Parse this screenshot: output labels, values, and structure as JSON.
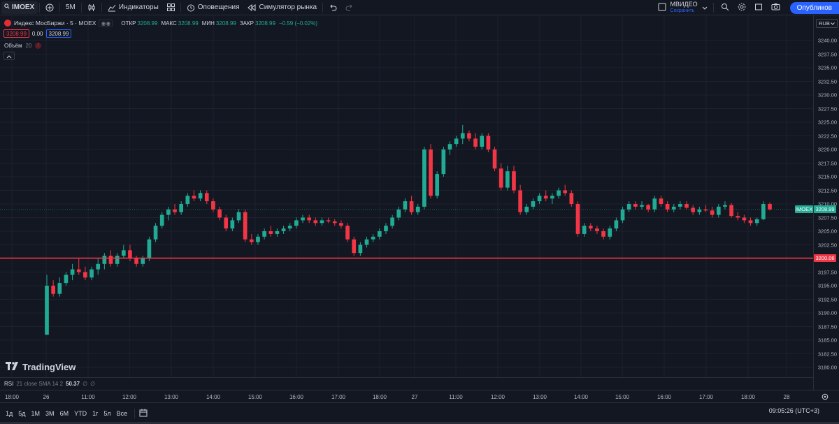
{
  "toolbar": {
    "symbol": "IMOEX",
    "interval": "5M",
    "indicators": "Индикаторы",
    "alerts": "Оповещения",
    "replay": "Симулятор рынка",
    "layout_name": "МВИДЕО",
    "layout_status": "Сохранить",
    "publish": "Опубликов"
  },
  "legend": {
    "title": "Индекс МосБиржи · 5 · MOEX",
    "open_label": "ОТКР",
    "open": "3208.99",
    "high_label": "МАКС",
    "high": "3208.99",
    "low_label": "МИН",
    "low": "3208.99",
    "close_label": "ЗАКР",
    "close": "3208.99",
    "change": "−0.59 (−0.02%)",
    "sell": "3208.99",
    "spread": "0.00",
    "buy": "3208.99",
    "volume_label": "Объём",
    "volume_param": "20"
  },
  "price_axis": {
    "currency": "RUB",
    "ticks": [
      "3240.00",
      "3237.50",
      "3235.00",
      "3232.50",
      "3230.00",
      "3227.50",
      "3225.00",
      "3222.50",
      "3220.00",
      "3217.50",
      "3215.00",
      "3212.50",
      "3210.00",
      "3207.50",
      "3205.00",
      "3202.50",
      "3197.50",
      "3195.00",
      "3192.50",
      "3190.00",
      "3187.50",
      "3185.00",
      "3182.50",
      "3180.00"
    ],
    "last_label": "IMOEX",
    "last_price": "3208.99",
    "line_price": "3200.06"
  },
  "colors": {
    "up": "#22ab94",
    "down": "#f23645",
    "line": "#f23645",
    "bg": "#131722",
    "grid": "#1e222d"
  },
  "rsi": {
    "label": "RSI",
    "params": "21 close SMA 14 2",
    "value": "50.37",
    "n1": "∅",
    "n2": "∅"
  },
  "time_axis": {
    "ticks": [
      "18:00",
      "26",
      "11:00",
      "12:00",
      "13:00",
      "14:00",
      "15:00",
      "16:00",
      "17:00",
      "18:00",
      "27",
      "11:00",
      "12:00",
      "13:00",
      "14:00",
      "15:00",
      "16:00",
      "17:00",
      "18:00",
      "28"
    ]
  },
  "bottom": {
    "ranges": [
      "1д",
      "5д",
      "1М",
      "3М",
      "6М",
      "YTD",
      "1г",
      "5л",
      "Все"
    ],
    "clock": "09:05:26 (UTC+3)"
  },
  "brand": "TradingView",
  "chart_data": {
    "type": "candlestick",
    "ylim": [
      3178.5,
      3242.5
    ],
    "hline": 3200.06,
    "candles": [
      [
        3186,
        3197,
        3186,
        3195
      ],
      [
        3195,
        3196,
        3193,
        3193.5
      ],
      [
        3193.5,
        3196.5,
        3193,
        3195.5
      ],
      [
        3195.5,
        3197.5,
        3195,
        3197
      ],
      [
        3197,
        3199,
        3196,
        3198
      ],
      [
        3198,
        3200,
        3197,
        3197.5
      ],
      [
        3197.5,
        3198.5,
        3196,
        3196.5
      ],
      [
        3196.5,
        3198.5,
        3196,
        3198
      ],
      [
        3198,
        3200,
        3197,
        3199
      ],
      [
        3199,
        3201,
        3198,
        3200.5
      ],
      [
        3200.5,
        3201.5,
        3198.5,
        3199
      ],
      [
        3199,
        3201,
        3198.5,
        3200.5
      ],
      [
        3200.5,
        3202.5,
        3200,
        3201.5
      ],
      [
        3201.5,
        3202.5,
        3199.5,
        3200
      ],
      [
        3200,
        3200.5,
        3198.5,
        3199
      ],
      [
        3199,
        3200.5,
        3198.5,
        3200
      ],
      [
        3200,
        3204,
        3199.5,
        3203.5
      ],
      [
        3203.5,
        3206.5,
        3203,
        3206
      ],
      [
        3206,
        3208.5,
        3205.5,
        3208
      ],
      [
        3208,
        3209.5,
        3207,
        3209
      ],
      [
        3209,
        3210,
        3208,
        3208.5
      ],
      [
        3208.5,
        3210.5,
        3208,
        3210
      ],
      [
        3210,
        3212,
        3209.5,
        3211.5
      ],
      [
        3211.5,
        3212.5,
        3210.5,
        3211
      ],
      [
        3211,
        3212.5,
        3210.5,
        3212
      ],
      [
        3212,
        3212.5,
        3210,
        3210.5
      ],
      [
        3210.5,
        3211,
        3208.5,
        3209
      ],
      [
        3209,
        3209.5,
        3207,
        3207.5
      ],
      [
        3207.5,
        3208,
        3205,
        3205.5
      ],
      [
        3205.5,
        3207.5,
        3205,
        3207
      ],
      [
        3207,
        3209,
        3206.5,
        3208.5
      ],
      [
        3208.5,
        3209,
        3203,
        3203.5
      ],
      [
        3203.5,
        3204.5,
        3202.5,
        3203
      ],
      [
        3203,
        3204.5,
        3202.5,
        3204
      ],
      [
        3204,
        3205.5,
        3203.5,
        3205
      ],
      [
        3205,
        3206,
        3204,
        3204.5
      ],
      [
        3204.5,
        3205.5,
        3204,
        3205
      ],
      [
        3205,
        3206,
        3204.5,
        3205.5
      ],
      [
        3205.5,
        3206.5,
        3205,
        3206
      ],
      [
        3206,
        3207.5,
        3205.5,
        3207
      ],
      [
        3207,
        3208,
        3206.5,
        3207.5
      ],
      [
        3207.5,
        3208,
        3206.5,
        3207
      ],
      [
        3207,
        3207.5,
        3206,
        3206.5
      ],
      [
        3206.5,
        3207.5,
        3206,
        3207
      ],
      [
        3207,
        3207.5,
        3206.5,
        3206.8
      ],
      [
        3206.8,
        3207.2,
        3206,
        3206.5
      ],
      [
        3206.5,
        3207,
        3205.5,
        3206
      ],
      [
        3206,
        3206.5,
        3203,
        3203.5
      ],
      [
        3203.5,
        3204,
        3200.5,
        3201
      ],
      [
        3201,
        3203,
        3200.5,
        3202.5
      ],
      [
        3202.5,
        3204,
        3202,
        3203.5
      ],
      [
        3203.5,
        3204.5,
        3203,
        3204
      ],
      [
        3204,
        3205.5,
        3203.5,
        3205
      ],
      [
        3205,
        3206.5,
        3204.5,
        3206
      ],
      [
        3206,
        3208,
        3205.5,
        3207.5
      ],
      [
        3207.5,
        3209.5,
        3207,
        3209
      ],
      [
        3209,
        3211,
        3208.5,
        3210.5
      ],
      [
        3210.5,
        3211.5,
        3208,
        3208.5
      ],
      [
        3208.5,
        3210,
        3208,
        3209.5
      ],
      [
        3209.5,
        3220.5,
        3209,
        3220
      ],
      [
        3220,
        3221,
        3211,
        3211.5
      ],
      [
        3211.5,
        3216,
        3211,
        3215.5
      ],
      [
        3215.5,
        3220.5,
        3215,
        3220
      ],
      [
        3220,
        3221.5,
        3219,
        3221
      ],
      [
        3221,
        3222.5,
        3220.5,
        3222
      ],
      [
        3222,
        3224.5,
        3221,
        3223
      ],
      [
        3223,
        3223.5,
        3221.5,
        3222
      ],
      [
        3222,
        3223,
        3220,
        3220.5
      ],
      [
        3220.5,
        3223,
        3220,
        3222.5
      ],
      [
        3222.5,
        3223,
        3219.5,
        3220
      ],
      [
        3220,
        3220.5,
        3216,
        3216.5
      ],
      [
        3216.5,
        3217.5,
        3212.5,
        3213
      ],
      [
        3213,
        3217,
        3212.5,
        3216
      ],
      [
        3216,
        3217,
        3212,
        3212.5
      ],
      [
        3212.5,
        3213.5,
        3208,
        3208.5
      ],
      [
        3208.5,
        3210,
        3208,
        3209.5
      ],
      [
        3209.5,
        3211,
        3209,
        3210.5
      ],
      [
        3210.5,
        3212,
        3210,
        3211.5
      ],
      [
        3211.5,
        3212.5,
        3210.5,
        3211
      ],
      [
        3211,
        3212,
        3210,
        3211.5
      ],
      [
        3211.5,
        3213,
        3211,
        3212.5
      ],
      [
        3212.5,
        3213.5,
        3211.5,
        3212
      ],
      [
        3212,
        3212.5,
        3209.5,
        3210
      ],
      [
        3210,
        3210.5,
        3204,
        3204.5
      ],
      [
        3204.5,
        3206.5,
        3204,
        3206
      ],
      [
        3206,
        3206.5,
        3205,
        3205.5
      ],
      [
        3205.5,
        3206,
        3204.5,
        3205
      ],
      [
        3205,
        3205.5,
        3203.5,
        3204
      ],
      [
        3204,
        3206,
        3203.5,
        3205.5
      ],
      [
        3205.5,
        3207.5,
        3205,
        3207
      ],
      [
        3207,
        3209.5,
        3206.5,
        3209
      ],
      [
        3209,
        3210.5,
        3208.5,
        3210
      ],
      [
        3210,
        3210.5,
        3209,
        3209.5
      ],
      [
        3209.5,
        3210.5,
        3209,
        3209.8
      ],
      [
        3209.8,
        3210,
        3208.5,
        3209
      ],
      [
        3209,
        3211.5,
        3208.5,
        3211
      ],
      [
        3211,
        3211.5,
        3209.5,
        3210
      ],
      [
        3210,
        3210.5,
        3208.5,
        3209
      ],
      [
        3209,
        3210,
        3208.5,
        3209.5
      ],
      [
        3209.5,
        3210.5,
        3209,
        3210
      ],
      [
        3210,
        3210.5,
        3209,
        3209.3
      ],
      [
        3209.3,
        3209.8,
        3208,
        3208.5
      ],
      [
        3208.5,
        3209.5,
        3208,
        3209
      ],
      [
        3209,
        3209.8,
        3208.5,
        3208.8
      ],
      [
        3208.8,
        3209.5,
        3207.5,
        3208
      ],
      [
        3208,
        3210,
        3207.5,
        3209.5
      ],
      [
        3209.5,
        3210.5,
        3209,
        3209.8
      ],
      [
        3209.8,
        3210.2,
        3207.5,
        3207.8
      ],
      [
        3207.8,
        3208.5,
        3207,
        3207.5
      ],
      [
        3207.5,
        3208,
        3206.5,
        3207
      ],
      [
        3207,
        3207.5,
        3206,
        3206.5
      ],
      [
        3206.5,
        3207.5,
        3206,
        3207.2
      ],
      [
        3207.2,
        3210.5,
        3207,
        3210
      ],
      [
        3210,
        3210.3,
        3208.8,
        3209
      ]
    ]
  }
}
